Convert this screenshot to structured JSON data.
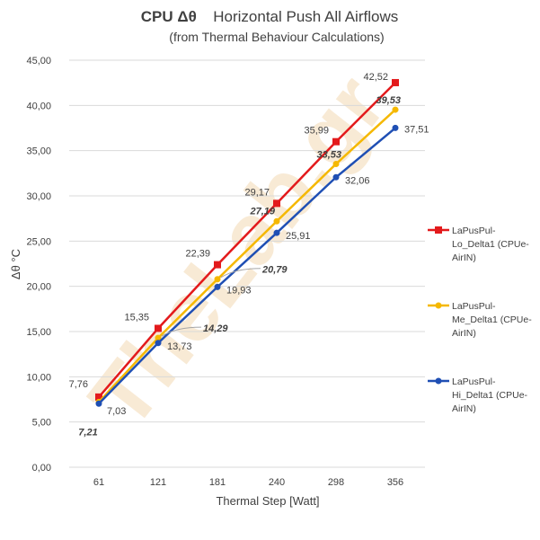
{
  "chart_data": {
    "type": "line",
    "title_bold": "CPU  Δθ",
    "title_rest": "Horizontal Push All Airflows",
    "subtitle": "(from Thermal Behaviour Calculations)",
    "xlabel": "Thermal Step [Watt]",
    "ylabel": "Δθ °C",
    "categories": [
      "61",
      "121",
      "181",
      "240",
      "298",
      "356"
    ],
    "ylim": [
      0,
      45
    ],
    "ytick_labels": [
      "0,00",
      "5,00",
      "10,00",
      "15,00",
      "20,00",
      "25,00",
      "30,00",
      "35,00",
      "40,00",
      "45,00"
    ],
    "grid": true,
    "legend_position": "right",
    "series": [
      {
        "name": "LaPusPul-Lo_Delta1 (CPUe-AirIN)",
        "legend_lines": [
          "LaPusPul-",
          "Lo_Delta1 (CPUe-",
          "AirIN)"
        ],
        "color": "#e31a1c",
        "marker": "square",
        "values": [
          7.76,
          15.35,
          22.39,
          29.17,
          35.99,
          42.52
        ],
        "labels": [
          "7,76",
          "15,35",
          "22,39",
          "29,17",
          "35,99",
          "42,52"
        ]
      },
      {
        "name": "LaPusPul-Me_Delta1 (CPUe-AirIN)",
        "legend_lines": [
          "LaPusPul-",
          "Me_Delta1 (CPUe-",
          "AirIN)"
        ],
        "color": "#f5b800",
        "marker": "circle",
        "values": [
          7.21,
          14.29,
          20.79,
          27.19,
          33.53,
          39.53
        ],
        "labels": [
          "7,21",
          "14,29",
          "20,79",
          "27,19",
          "33,53",
          "39,53"
        ]
      },
      {
        "name": "LaPusPul-Hi_Delta1 (CPUe-AirIN)",
        "legend_lines": [
          "LaPusPul-",
          "Hi_Delta1 (CPUe-",
          "AirIN)"
        ],
        "color": "#1f4fb4",
        "marker": "circle",
        "values": [
          7.03,
          13.73,
          19.93,
          25.91,
          32.06,
          37.51
        ],
        "labels": [
          "7,03",
          "13,73",
          "19,93",
          "25,91",
          "32,06",
          "37,51"
        ]
      }
    ]
  }
}
